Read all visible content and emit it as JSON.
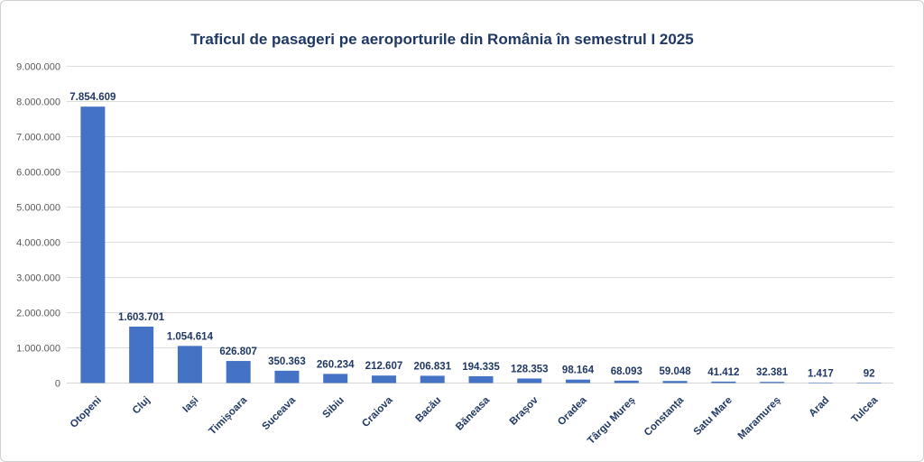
{
  "chart_data": {
    "type": "bar",
    "title": "Traficul de pasageri pe aeroporturile din România în semestrul I 2025",
    "categories": [
      "Otopeni",
      "Cluj",
      "Iași",
      "Timișoara",
      "Suceava",
      "Sibiu",
      "Craiova",
      "Bacău",
      "Băneasa",
      "Brașov",
      "Oradea",
      "Târgu Mureș",
      "Constanța",
      "Satu Mare",
      "Maramureș",
      "Arad",
      "Tulcea"
    ],
    "values": [
      7854609,
      1603701,
      1054614,
      626807,
      350363,
      260234,
      212607,
      206831,
      194335,
      128353,
      98164,
      68093,
      59048,
      41412,
      32381,
      1417,
      92
    ],
    "value_labels": [
      "7.854.609",
      "1.603.701",
      "1.054.614",
      "626.807",
      "350.363",
      "260.234",
      "212.607",
      "206.831",
      "194.335",
      "128.353",
      "98.164",
      "68.093",
      "59.048",
      "41.412",
      "32.381",
      "1.417",
      "92"
    ],
    "xlabel": "",
    "ylabel": "",
    "ylim": [
      0,
      9000000
    ],
    "ytick_step": 1000000,
    "y_tick_labels": [
      "0",
      "1.000.000",
      "2.000.000",
      "3.000.000",
      "4.000.000",
      "5.000.000",
      "6.000.000",
      "7.000.000",
      "8.000.000",
      "9.000.000"
    ],
    "grid": true,
    "legend": "none",
    "colors": {
      "bar": "#4472C4",
      "title": "#1F3864",
      "data_label": "#1F3864",
      "category_label": "#1F3864",
      "y_axis_label": "#595959",
      "gridline": "#DCDCDC",
      "baseline": "#D6D6D6",
      "background": "#FFFFFF",
      "frame_border": "#CFCFCF"
    }
  }
}
